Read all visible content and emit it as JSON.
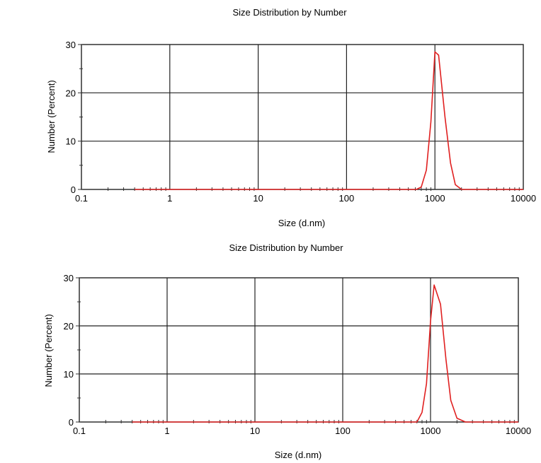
{
  "charts": [
    {
      "chart_data": {
        "type": "line",
        "title": "Size Distribution by Number",
        "xlabel": "Size (d.nm)",
        "ylabel": "Number (Percent)",
        "x_scale": "log",
        "xlim": [
          0.1,
          10000
        ],
        "ylim": [
          0,
          30
        ],
        "x_ticks": [
          "0.1",
          "1",
          "10",
          "100",
          "1000",
          "10000"
        ],
        "y_ticks": [
          "0",
          "10",
          "20",
          "30"
        ],
        "grid": true,
        "line_color": "#e02020",
        "series": [
          {
            "x": [
              0.4,
              1,
              10,
              100,
              500,
              615,
              700,
              800,
              900,
              1000,
              1100,
              1300,
              1500,
              1700,
              2000,
              2500,
              5000,
              10000
            ],
            "values": [
              0,
              0,
              0,
              0,
              0,
              0,
              0.5,
              4,
              14,
              28.5,
              27.8,
              15,
              5.5,
              1,
              0,
              0,
              0,
              0
            ]
          }
        ]
      }
    },
    {
      "chart_data": {
        "type": "line",
        "title": "Size Distribution by Number",
        "xlabel": "Size (d.nm)",
        "ylabel": "Number (Percent)",
        "x_scale": "log",
        "xlim": [
          0.1,
          10000
        ],
        "ylim": [
          0,
          30
        ],
        "x_ticks": [
          "0.1",
          "1",
          "10",
          "100",
          "1000",
          "10000"
        ],
        "y_ticks": [
          "0",
          "10",
          "20",
          "30"
        ],
        "grid": true,
        "line_color": "#e02020",
        "series": [
          {
            "x": [
              0.4,
              1,
              10,
              100,
              500,
              700,
              800,
              900,
              1000,
              1100,
              1300,
              1500,
              1700,
              2000,
              2500,
              5000,
              10000
            ],
            "values": [
              0,
              0,
              0,
              0,
              0,
              0,
              2,
              8,
              21,
              28.5,
              24.5,
              13,
              4.5,
              0.8,
              0,
              0,
              0
            ]
          }
        ]
      }
    }
  ]
}
